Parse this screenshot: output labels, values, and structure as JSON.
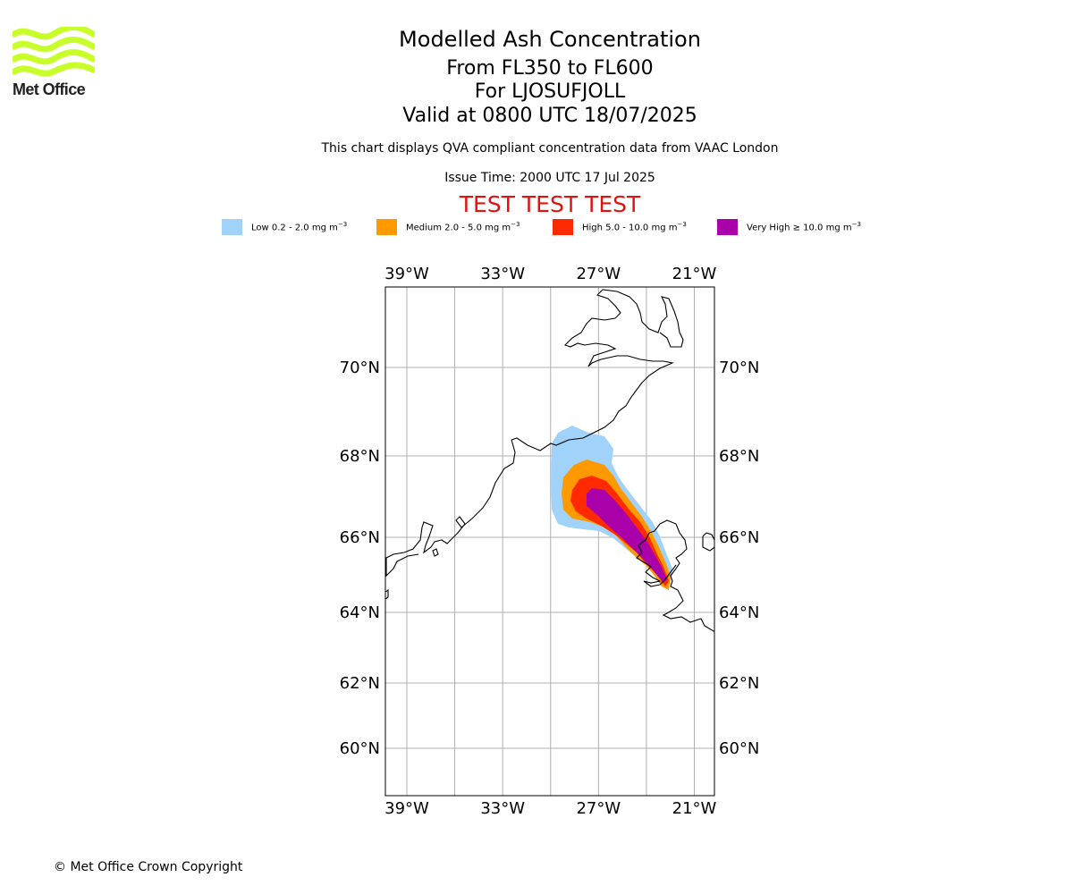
{
  "header": {
    "title": "Modelled Ash Concentration",
    "levels": "From FL350 to FL600",
    "volcano": "For LJOSUFJOLL",
    "valid": "Valid at 0800 UTC 18/07/2025",
    "description": "This chart displays QVA compliant concentration data from VAAC London",
    "issue_time": "Issue Time: 2000 UTC 17 Jul 2025",
    "test_banner": "TEST TEST TEST"
  },
  "logo": {
    "text": "Met Office",
    "color": "#c8ff2a"
  },
  "legend": [
    {
      "label": "Low 0.2 - 2.0 mg m",
      "exp": "−3",
      "color": "#a0d2fa"
    },
    {
      "label": "Medium 2.0 - 5.0 mg m",
      "exp": "−3",
      "color": "#ff9900"
    },
    {
      "label": "High 5.0 - 10.0 mg m",
      "exp": "−3",
      "color": "#ff2a00"
    },
    {
      "label": "Very High  ≥  10.0 mg m",
      "exp": "−3",
      "color": "#aa00aa"
    }
  ],
  "map": {
    "lon_ticks": [
      {
        "value": -39,
        "label": "39°W"
      },
      {
        "value": -33,
        "label": "33°W"
      },
      {
        "value": -27,
        "label": "27°W"
      },
      {
        "value": -21,
        "label": "21°W"
      }
    ],
    "lat_ticks": [
      {
        "value": 70,
        "label": "70°N"
      },
      {
        "value": 68,
        "label": "68°N"
      },
      {
        "value": 66,
        "label": "66°N"
      },
      {
        "value": 64,
        "label": "64°N"
      },
      {
        "value": 62,
        "label": "62°N"
      },
      {
        "value": 60,
        "label": "60°N"
      }
    ],
    "grid_color": "#b0b0b0",
    "coast_color": "#000000"
  },
  "footer": {
    "copyright": "© Met Office Crown Copyright"
  }
}
